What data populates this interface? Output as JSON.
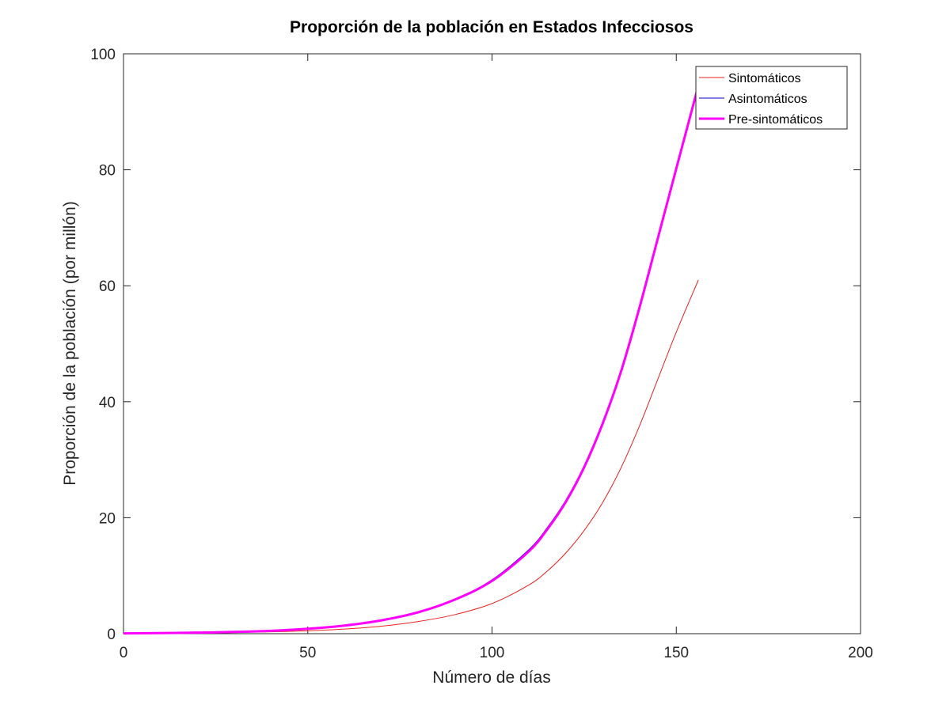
{
  "chart_data": {
    "type": "line",
    "title": "Proporción de la población en Estados Infecciosos",
    "xlabel": "Número de días",
    "ylabel": "Proporción de la población (por millón)",
    "xlim": [
      0,
      200
    ],
    "ylim": [
      0,
      100
    ],
    "xticks": [
      0,
      50,
      100,
      150,
      200
    ],
    "yticks": [
      0,
      20,
      40,
      60,
      80,
      100
    ],
    "xtick_labels": [
      "0",
      "50",
      "100",
      "150",
      "200"
    ],
    "ytick_labels": [
      "0",
      "20",
      "40",
      "60",
      "80",
      "100"
    ],
    "grid": false,
    "legend_position": "top-right",
    "x": [
      0,
      10,
      20,
      30,
      40,
      50,
      60,
      70,
      80,
      90,
      100,
      110,
      115,
      120,
      125,
      130,
      135,
      140,
      145,
      150,
      156
    ],
    "series": [
      {
        "name": "Sintomáticos",
        "color": "#e8211e",
        "line_width": 1,
        "values": [
          0.04,
          0.07,
          0.12,
          0.2,
          0.32,
          0.5,
          0.8,
          1.3,
          2.1,
          3.3,
          5.2,
          8.4,
          10.8,
          13.9,
          17.8,
          22.6,
          28.6,
          35.8,
          43.9,
          52.0,
          61.0
        ]
      },
      {
        "name": "Asintomáticos",
        "color": "#0000cc",
        "line_width": 1,
        "values": [
          0.05,
          0.1,
          0.18,
          0.3,
          0.5,
          0.85,
          1.4,
          2.3,
          3.7,
          5.9,
          9.3,
          14.5,
          18.3,
          23.0,
          29.0,
          36.5,
          45.5,
          56.5,
          68.5,
          80.5,
          95.0
        ]
      },
      {
        "name": "Pre-sintomáticos",
        "color": "#ff00ff",
        "line_width": 3,
        "values": [
          0.05,
          0.1,
          0.18,
          0.3,
          0.5,
          0.85,
          1.4,
          2.3,
          3.7,
          5.9,
          9.1,
          14.2,
          18.0,
          22.7,
          28.7,
          36.2,
          45.2,
          56.2,
          68.2,
          80.2,
          94.5
        ]
      }
    ]
  }
}
